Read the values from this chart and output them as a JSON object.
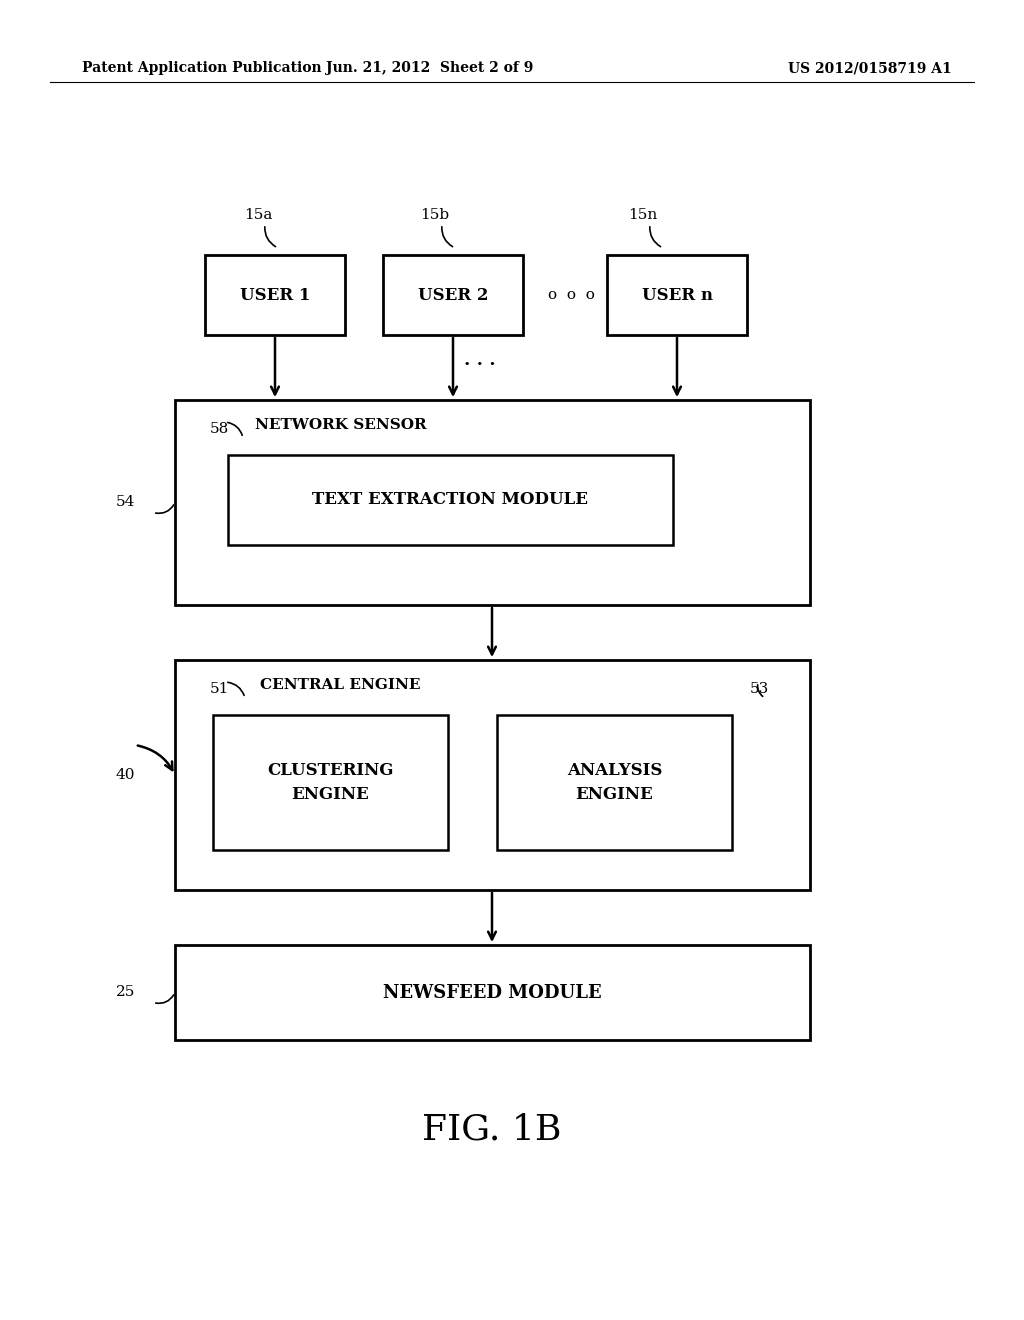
{
  "bg_color": "#ffffff",
  "header_left": "Patent Application Publication",
  "header_mid": "Jun. 21, 2012  Sheet 2 of 9",
  "header_right": "US 2012/0158719 A1",
  "fig_label": "FIG. 1B",
  "user1_label": "USER 1",
  "user2_label": "USER 2",
  "usern_label": "USER n",
  "ref_15a": "15a",
  "ref_15b": "15b",
  "ref_15n": "15n",
  "ref_54": "54",
  "ref_58": "58",
  "ref_ns": "NETWORK SENSOR",
  "ref_tem": "TEXT EXTRACTION MODULE",
  "ref_51": "51",
  "ref_53": "53",
  "ref_ce": "CENTRAL ENGINE",
  "ref_cl": "CLUSTERING\nENGINE",
  "ref_an": "ANALYSIS\nENGINE",
  "ref_40": "40",
  "ref_25": "25",
  "ref_nf": "NEWSFEED MODULE"
}
